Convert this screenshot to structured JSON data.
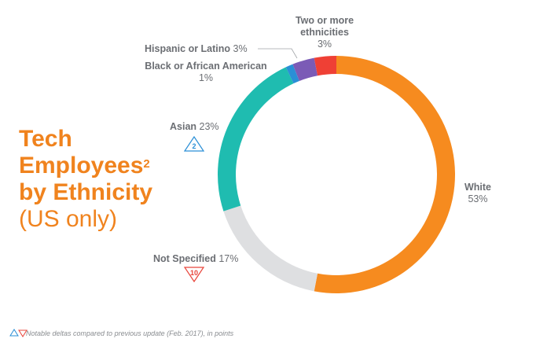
{
  "title": {
    "line1": "Tech",
    "line2": "Employees",
    "superscript": "2",
    "line3": "by Ethnicity",
    "line4": "(US only)"
  },
  "footnote": "Notable deltas compared to previous update (Feb. 2017), in points",
  "colors": {
    "accent": "#f0831e",
    "up": "#2a8fd6",
    "down": "#e8443a"
  },
  "chart_data": {
    "type": "pie",
    "donut": true,
    "slices": [
      {
        "label": "White",
        "value": 53,
        "pct_text": "53%",
        "color": "#f68b1f"
      },
      {
        "label": "Not Specified",
        "value": 17,
        "pct_text": "17%",
        "color": "#dedfe1",
        "delta": "10",
        "delta_dir": "down"
      },
      {
        "label": "Asian",
        "value": 23,
        "pct_text": "23%",
        "color": "#1fbcb0",
        "delta": "2",
        "delta_dir": "up"
      },
      {
        "label": "Black or African American",
        "value": 1,
        "pct_text": "1%",
        "color": "#2a8fd6"
      },
      {
        "label": "Hispanic or Latino",
        "value": 3,
        "pct_text": "3%",
        "color": "#7b5bb6"
      },
      {
        "label": "Two or more ethnicities",
        "value": 3,
        "pct_text": "3%",
        "color": "#ef4035"
      }
    ]
  }
}
